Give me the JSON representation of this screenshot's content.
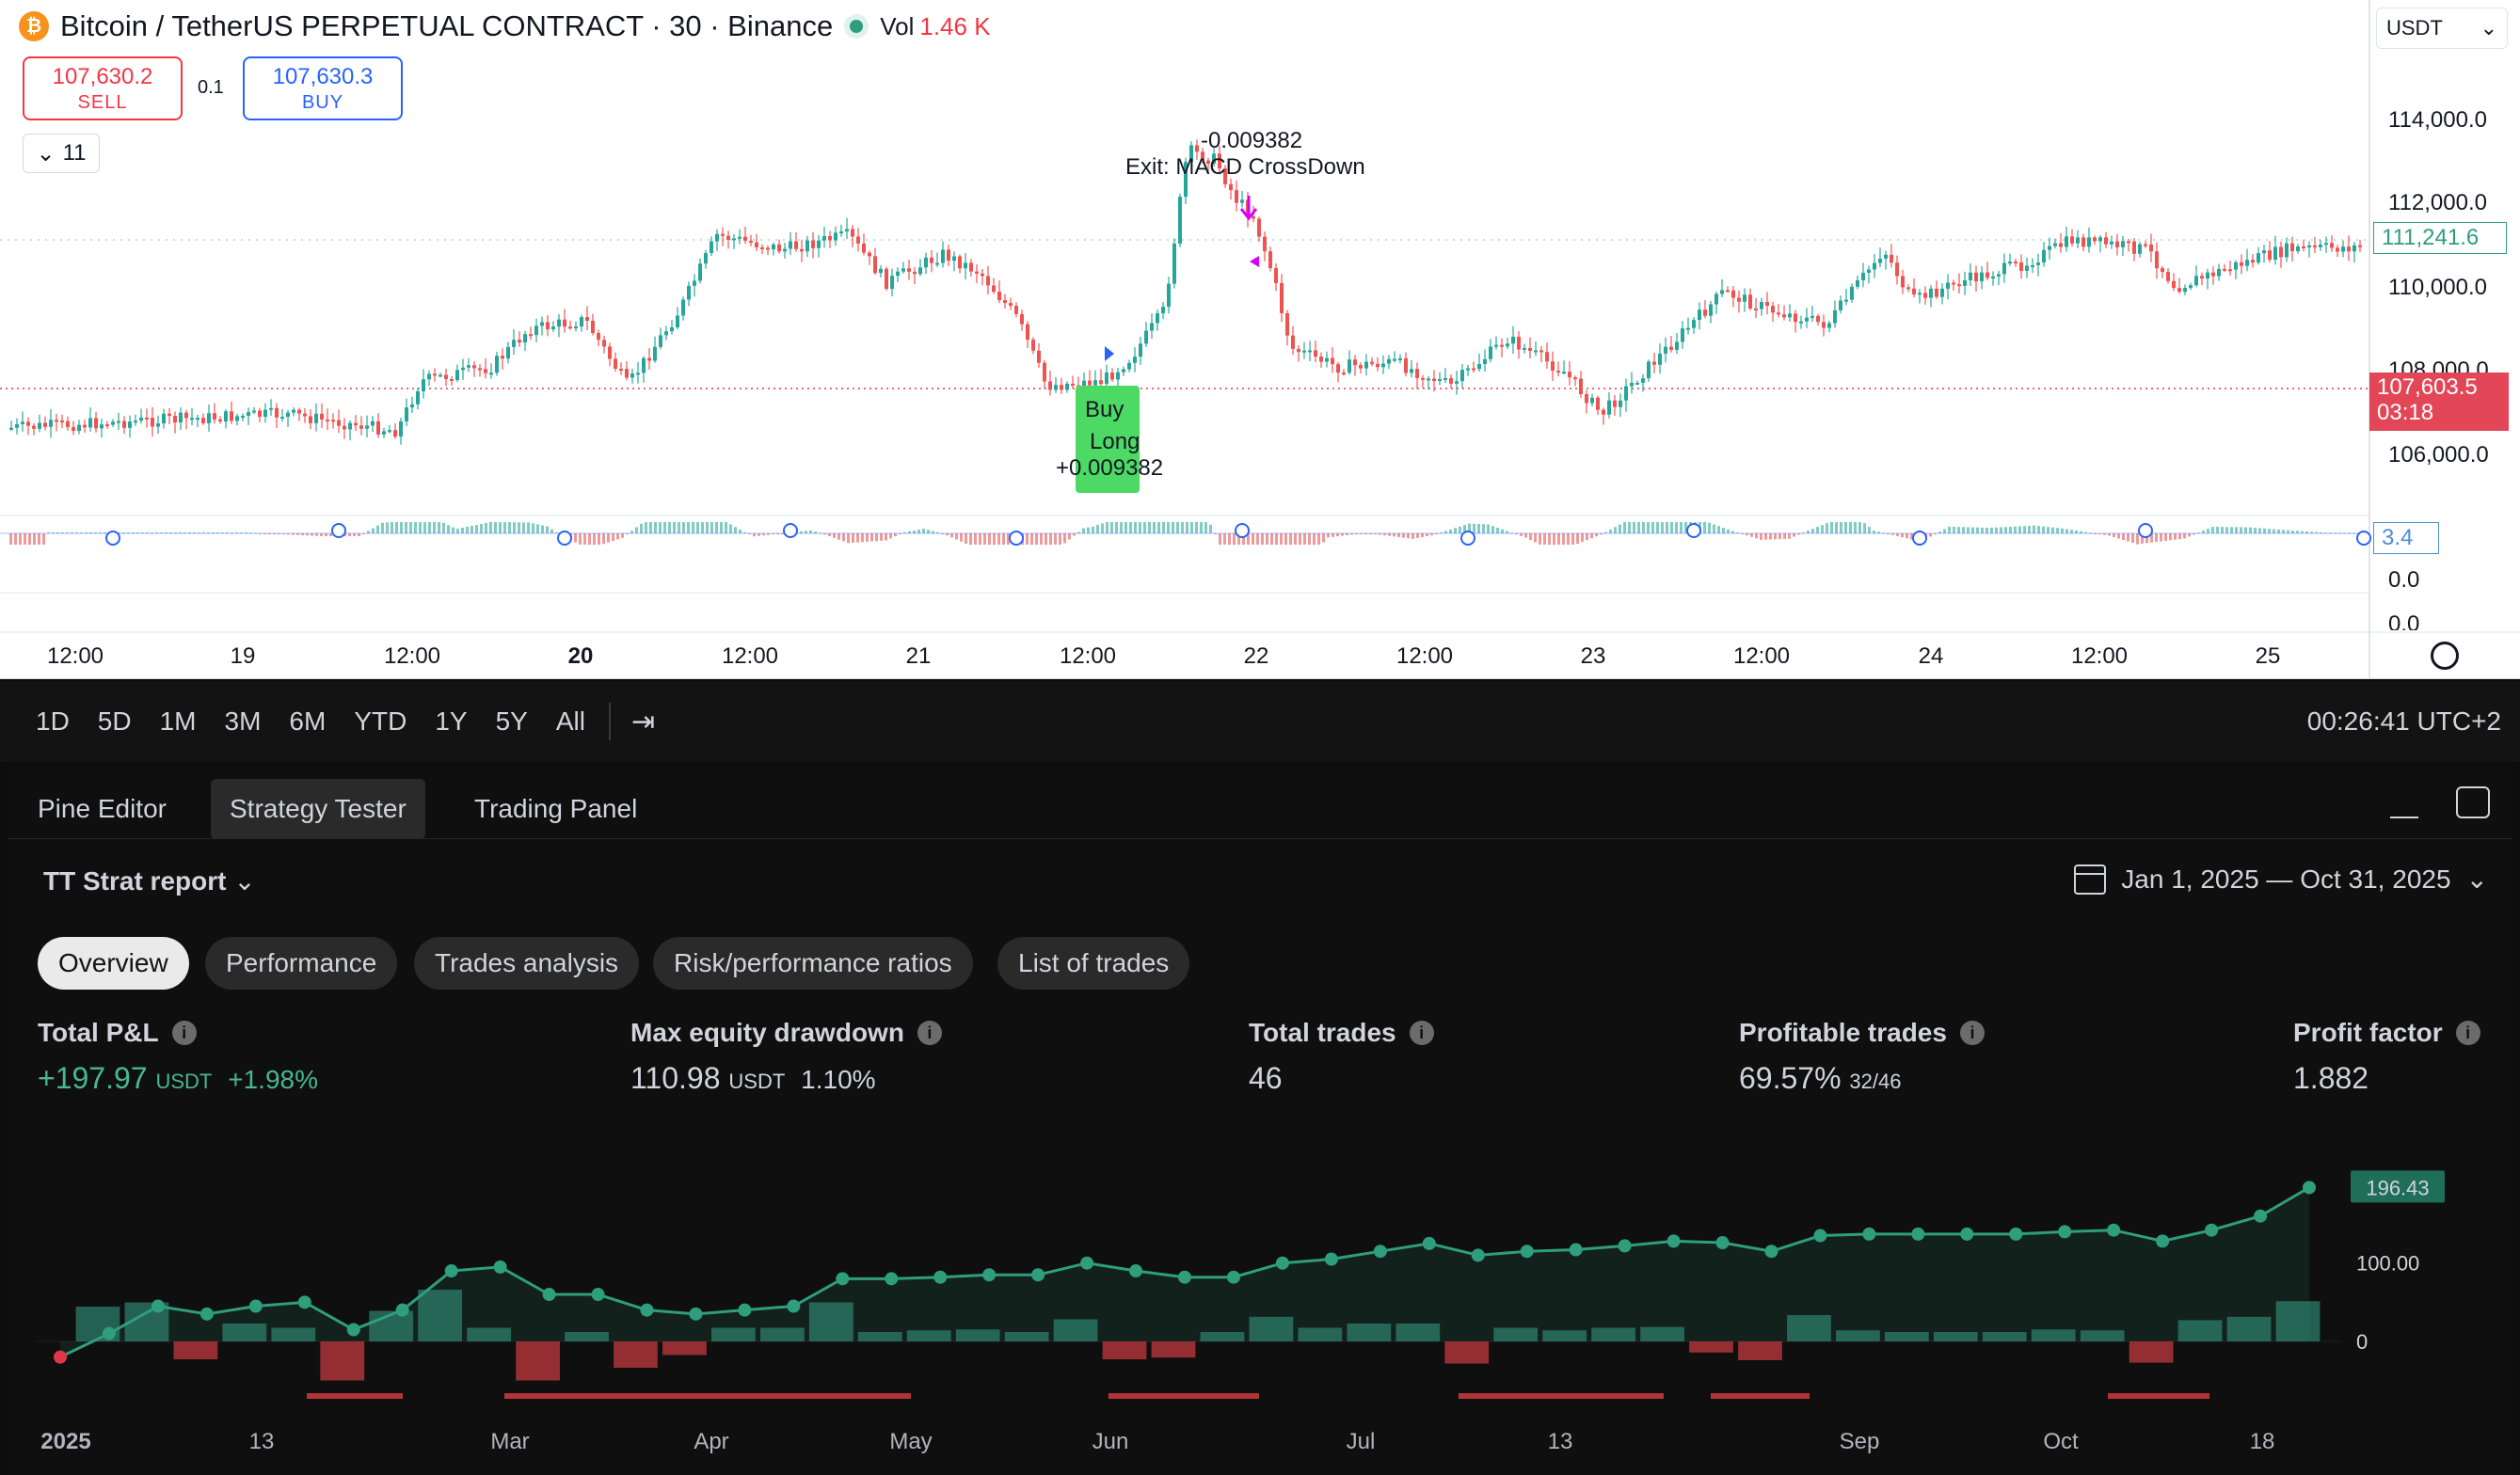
{
  "header": {
    "symbol_title": "Bitcoin / TetherUS PERPETUAL CONTRACT · 30 · Binance",
    "vol_label": "Vol",
    "vol_value": "1.46 K",
    "coin_glyph": "₿"
  },
  "order": {
    "sell_price": "107,630.2",
    "sell_label": "SELL",
    "buy_price": "107,630.3",
    "buy_label": "BUY",
    "quantity": "0.1",
    "collapse_count": "11"
  },
  "currency_select": "USDT",
  "price_axis": {
    "labels": [
      "114,000.0",
      "112,000.0",
      "110,000.0",
      "108,000.0",
      "106,000.0"
    ],
    "last_price": "111,241.6",
    "current_price": "107,603.5",
    "countdown": "03:18",
    "indicator_value": "3.4",
    "indicator_labels": [
      "0.0",
      "0.0"
    ]
  },
  "time_axis": [
    "12:00",
    "19",
    "12:00",
    "20",
    "12:00",
    "21",
    "12:00",
    "22",
    "12:00",
    "23",
    "12:00",
    "24",
    "12:00",
    "25"
  ],
  "annotations": {
    "exit_value": "-0.009382",
    "exit_label": "Exit: MACD CrossDown",
    "buy_label": "Buy",
    "long_label": "Long",
    "long_value": "+0.009382"
  },
  "range_bar": {
    "ranges": [
      "1D",
      "5D",
      "1M",
      "3M",
      "6M",
      "YTD",
      "1Y",
      "5Y",
      "All"
    ],
    "clock": "00:26:41 UTC+2"
  },
  "panel": {
    "tabs": [
      "Pine Editor",
      "Strategy Tester",
      "Trading Panel"
    ],
    "active_tab": "Strategy Tester",
    "report_title": "TT Strat report",
    "date_range": "Jan 1, 2025 — Oct 31, 2025",
    "subtabs": [
      "Overview",
      "Performance",
      "Trades analysis",
      "Risk/performance ratios",
      "List of trades"
    ],
    "metrics": {
      "total_pnl": {
        "label": "Total P&L",
        "value": "+197.97",
        "unit": "USDT",
        "pct": "+1.98%"
      },
      "max_dd": {
        "label": "Max equity drawdown",
        "value": "110.98",
        "unit": "USDT",
        "pct": "1.10%"
      },
      "total_trades": {
        "label": "Total trades",
        "value": "46"
      },
      "profitable": {
        "label": "Profitable trades",
        "value": "69.57%",
        "ratio": "32/46"
      },
      "profit_factor": {
        "label": "Profit factor",
        "value": "1.882"
      }
    }
  },
  "chart_data": {
    "type": "line",
    "title": "",
    "x_labels": [
      "2025",
      "13",
      "Mar",
      "Apr",
      "May",
      "Jun",
      "Jul",
      "13",
      "Sep",
      "Oct",
      "18"
    ],
    "y_labels": [
      "100.00",
      "0"
    ],
    "last_value_label": "196.43",
    "series": [
      {
        "values": [
          -20,
          10,
          45,
          35,
          45,
          50,
          15,
          40,
          90,
          95,
          60,
          60,
          40,
          35,
          40,
          45,
          80,
          80,
          82,
          85,
          85,
          100,
          90,
          82,
          82,
          100,
          105,
          115,
          125,
          110,
          115,
          117,
          122,
          128,
          126,
          115,
          135,
          137,
          137,
          137,
          137,
          140,
          142,
          128,
          142,
          160,
          196.43
        ]
      }
    ],
    "colors": {
      "line": "#2e9e7c",
      "positive_bar": "#2e7d6a",
      "negative_bar": "#c23a3f"
    }
  }
}
